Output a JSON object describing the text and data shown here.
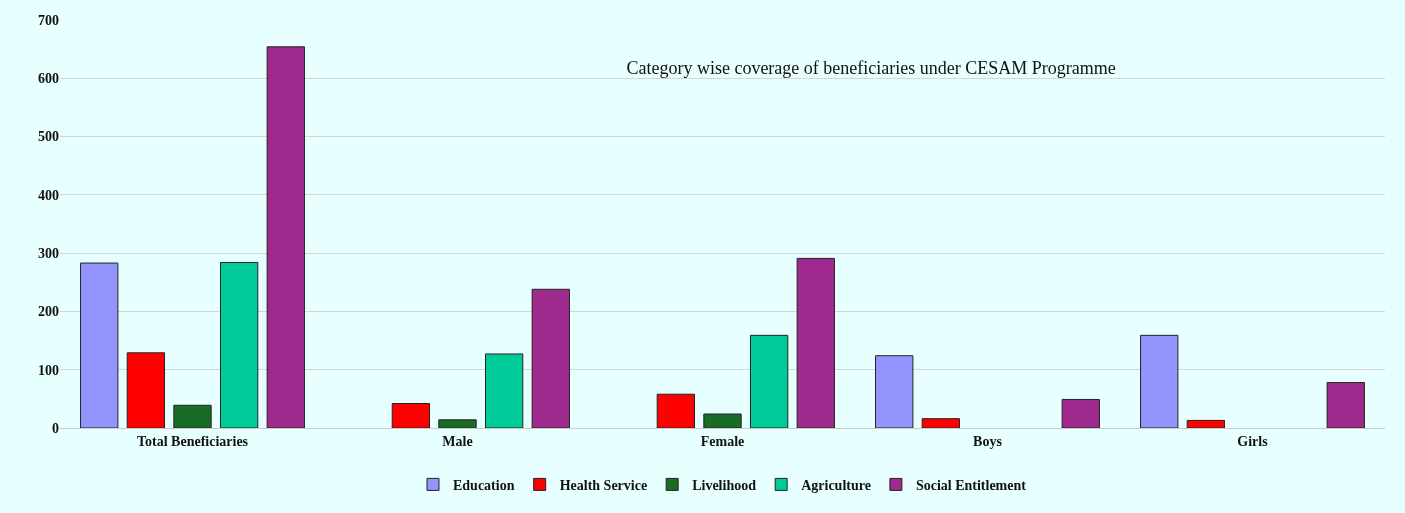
{
  "chart_data": {
    "type": "bar",
    "title": "Category wise coverage of beneficiaries under CESAM Programme",
    "categories": [
      "Total Beneficiaries",
      "Male",
      "Female",
      "Boys",
      "Girls"
    ],
    "series": [
      {
        "name": "Education",
        "color": "#9494ff",
        "values": [
          283,
          null,
          null,
          124,
          159
        ]
      },
      {
        "name": "Health Service",
        "color": "#ff0000",
        "values": [
          129,
          42,
          58,
          16,
          13
        ]
      },
      {
        "name": "Livelihood",
        "color": "#1a6b23",
        "values": [
          39,
          14,
          24,
          null,
          null
        ]
      },
      {
        "name": "Agriculture",
        "color": "#00cc99",
        "values": [
          284,
          127,
          159,
          null,
          null
        ]
      },
      {
        "name": "Social Entitlement",
        "color": "#9e2a8e",
        "values": [
          654,
          238,
          291,
          49,
          78
        ]
      }
    ],
    "ylim": [
      0,
      700
    ],
    "yticks": [
      0,
      100,
      200,
      300,
      400,
      500,
      600,
      700
    ],
    "grid": "y",
    "legend": "bottom"
  }
}
